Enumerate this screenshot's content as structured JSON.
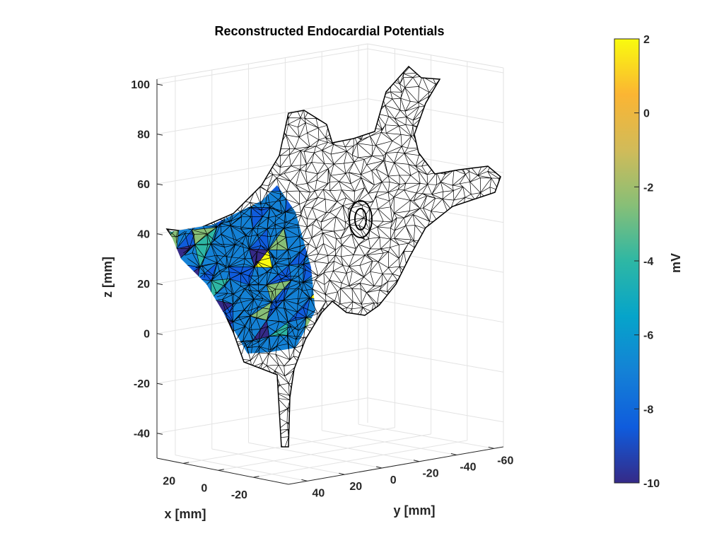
{
  "chart_data": {
    "type": "3d-mesh",
    "title": "Reconstructed Endocardial Potentials",
    "xlabel": "x [mm]",
    "ylabel": "y [mm]",
    "zlabel": "z [mm]",
    "xlim": [
      35,
      -40
    ],
    "ylim": [
      50,
      -65
    ],
    "zlim": [
      -50,
      102
    ],
    "xticks": [
      "20",
      "0",
      "-20"
    ],
    "xtick_values": [
      20,
      0,
      -20
    ],
    "yticks": [
      "40",
      "20",
      "0",
      "-20",
      "-40",
      "-60"
    ],
    "ytick_values": [
      40,
      20,
      0,
      -20,
      -40,
      -60
    ],
    "zticks": [
      "100",
      "80",
      "60",
      "40",
      "20",
      "0",
      "-20",
      "-40"
    ],
    "ztick_values": [
      100,
      80,
      60,
      40,
      20,
      0,
      -20,
      -40
    ],
    "grid": true,
    "mesh_edge_color": "#000000",
    "colorbar": {
      "label": "mV",
      "range": [
        -10,
        2
      ],
      "ticks": [
        "2",
        "0",
        "-2",
        "-4",
        "-6",
        "-8",
        "-10"
      ],
      "tick_values": [
        2,
        0,
        -2,
        -4,
        -6,
        -8,
        -10
      ],
      "colormap": "parula",
      "colors": [
        "#352a87",
        "#0f5cdd",
        "#1481d6",
        "#06a4ca",
        "#2eb7a4",
        "#87bf77",
        "#d1bb59",
        "#fbb533",
        "#f9fb0e"
      ]
    }
  }
}
